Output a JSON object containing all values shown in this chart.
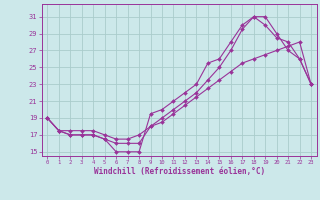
{
  "background_color": "#cce8ea",
  "grid_color": "#aacccc",
  "line_color": "#993399",
  "xlim": [
    -0.5,
    23.5
  ],
  "ylim": [
    14.5,
    32.5
  ],
  "xticks": [
    0,
    1,
    2,
    3,
    4,
    5,
    6,
    7,
    8,
    9,
    10,
    11,
    12,
    13,
    14,
    15,
    16,
    17,
    18,
    19,
    20,
    21,
    22,
    23
  ],
  "yticks": [
    15,
    17,
    19,
    21,
    23,
    25,
    27,
    29,
    31
  ],
  "xlabel": "Windchill (Refroidissement éolien,°C)",
  "line1_x": [
    0,
    1,
    2,
    3,
    4,
    5,
    6,
    7,
    8,
    9,
    10,
    11,
    12,
    13,
    14,
    15,
    16,
    17,
    18,
    19,
    20,
    21,
    22,
    23
  ],
  "line1_y": [
    19,
    17.5,
    17,
    17,
    17,
    16.5,
    15,
    15,
    15,
    19.5,
    20,
    21,
    22,
    23,
    25.5,
    26,
    28,
    30,
    31,
    31,
    29,
    27,
    26,
    23
  ],
  "line2_x": [
    0,
    1,
    2,
    3,
    4,
    5,
    6,
    7,
    8,
    9,
    10,
    11,
    12,
    13,
    14,
    15,
    16,
    17,
    18,
    19,
    20,
    21,
    22,
    23
  ],
  "line2_y": [
    19,
    17.5,
    17,
    17,
    17,
    16.5,
    16,
    16,
    16,
    18,
    19,
    20,
    21,
    22,
    23.5,
    25,
    27,
    29.5,
    31,
    30,
    28.5,
    28,
    26,
    23
  ],
  "line3_x": [
    0,
    1,
    2,
    3,
    4,
    5,
    6,
    7,
    8,
    9,
    10,
    11,
    12,
    13,
    14,
    15,
    16,
    17,
    18,
    19,
    20,
    21,
    22,
    23
  ],
  "line3_y": [
    19,
    17.5,
    17.5,
    17.5,
    17.5,
    17,
    16.5,
    16.5,
    17,
    18,
    18.5,
    19.5,
    20.5,
    21.5,
    22.5,
    23.5,
    24.5,
    25.5,
    26,
    26.5,
    27,
    27.5,
    28,
    23
  ]
}
